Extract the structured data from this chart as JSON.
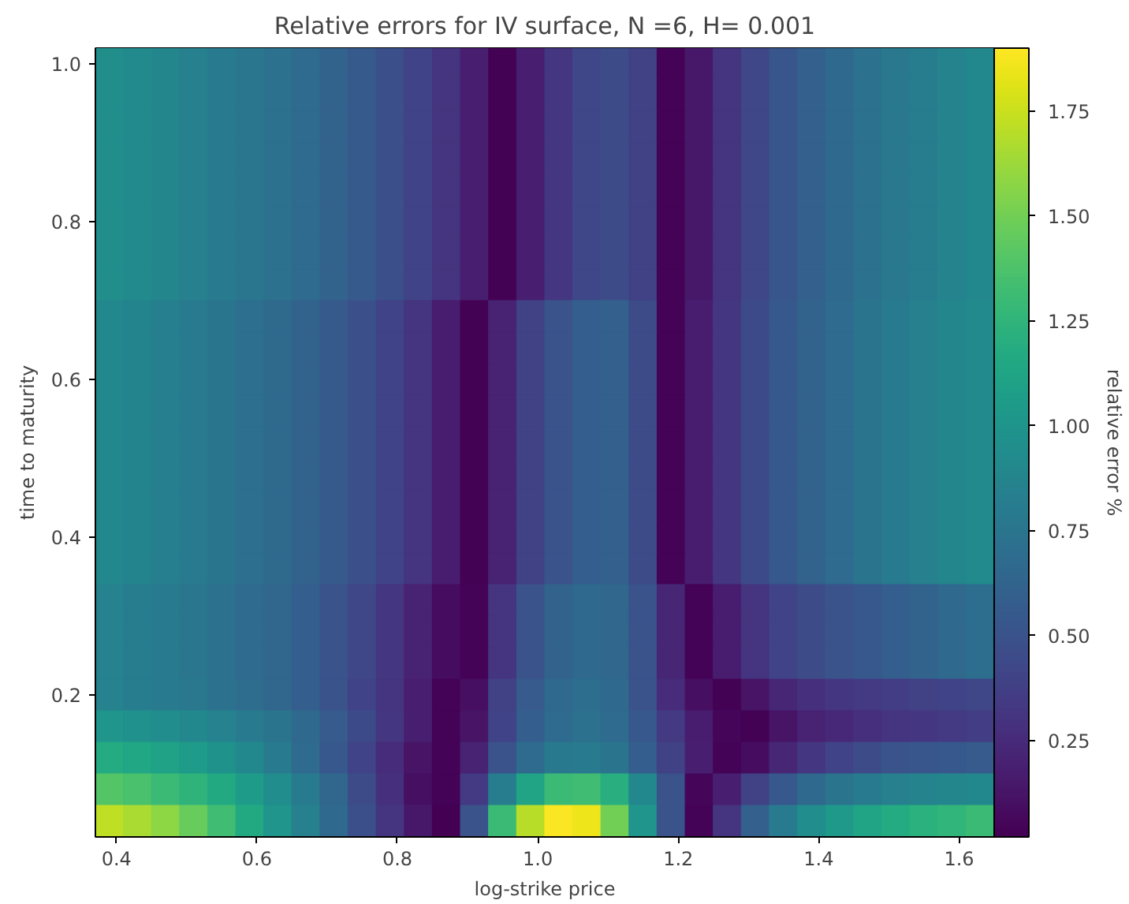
{
  "chart_data": {
    "type": "heatmap",
    "title": "Relative errors for IV surface, N =6, H= 0.001",
    "xlabel": "log-strike price",
    "ylabel": "time to maturity",
    "clabel": "relative error %",
    "x": [
      0.39,
      0.43,
      0.47,
      0.51,
      0.55,
      0.59,
      0.63,
      0.67,
      0.71,
      0.75,
      0.79,
      0.83,
      0.87,
      0.91,
      0.95,
      0.99,
      1.03,
      1.07,
      1.11,
      1.15,
      1.19,
      1.23,
      1.27,
      1.31,
      1.35,
      1.39,
      1.43,
      1.47,
      1.51,
      1.55,
      1.59,
      1.63
    ],
    "y": [
      1.0,
      0.96,
      0.92,
      0.88,
      0.84,
      0.8,
      0.76,
      0.72,
      0.68,
      0.64,
      0.6,
      0.56,
      0.52,
      0.48,
      0.44,
      0.4,
      0.36,
      0.32,
      0.28,
      0.24,
      0.2,
      0.16,
      0.12,
      0.08,
      0.04
    ],
    "xlim": [
      0.37,
      1.65
    ],
    "xticks": [
      {
        "value": 0.4,
        "label": "0.4"
      },
      {
        "value": 0.6,
        "label": "0.6"
      },
      {
        "value": 0.8,
        "label": "0.8"
      },
      {
        "value": 1.0,
        "label": "1.0"
      },
      {
        "value": 1.2,
        "label": "1.2"
      },
      {
        "value": 1.4,
        "label": "1.4"
      },
      {
        "value": 1.6,
        "label": "1.6"
      }
    ],
    "ylim": [
      0.02,
      1.02
    ],
    "yticks": [
      0.2,
      0.4,
      0.6,
      0.8,
      {
        "value": 1.0,
        "label": "1.0"
      }
    ],
    "clim": [
      0.02,
      1.9
    ],
    "cticks": [
      0.25,
      {
        "value": 0.5,
        "label": "0.50"
      },
      0.75,
      {
        "value": 1.0,
        "label": "1.00"
      },
      1.25,
      {
        "value": 1.5,
        "label": "1.50"
      },
      1.75
    ],
    "cells": [
      [
        0.95,
        0.92,
        0.88,
        0.84,
        0.8,
        0.76,
        0.72,
        0.68,
        0.62,
        0.55,
        0.48,
        0.4,
        0.3,
        0.18,
        0.03,
        0.18,
        0.32,
        0.42,
        0.46,
        0.38,
        0.04,
        0.14,
        0.3,
        0.42,
        0.52,
        0.6,
        0.66,
        0.72,
        0.77,
        0.82,
        0.86,
        0.9
      ],
      [
        0.95,
        0.92,
        0.88,
        0.84,
        0.8,
        0.76,
        0.72,
        0.68,
        0.62,
        0.55,
        0.48,
        0.4,
        0.3,
        0.18,
        0.03,
        0.18,
        0.32,
        0.42,
        0.46,
        0.38,
        0.04,
        0.14,
        0.3,
        0.42,
        0.52,
        0.6,
        0.66,
        0.72,
        0.77,
        0.82,
        0.86,
        0.9
      ],
      [
        0.95,
        0.92,
        0.88,
        0.84,
        0.8,
        0.76,
        0.72,
        0.68,
        0.62,
        0.55,
        0.48,
        0.4,
        0.3,
        0.18,
        0.03,
        0.18,
        0.32,
        0.42,
        0.46,
        0.38,
        0.04,
        0.14,
        0.3,
        0.42,
        0.52,
        0.6,
        0.66,
        0.72,
        0.77,
        0.82,
        0.86,
        0.9
      ],
      [
        0.95,
        0.92,
        0.88,
        0.84,
        0.8,
        0.76,
        0.72,
        0.68,
        0.62,
        0.55,
        0.48,
        0.4,
        0.3,
        0.18,
        0.03,
        0.18,
        0.32,
        0.42,
        0.46,
        0.38,
        0.04,
        0.14,
        0.3,
        0.42,
        0.52,
        0.6,
        0.66,
        0.72,
        0.77,
        0.82,
        0.86,
        0.9
      ],
      [
        0.95,
        0.92,
        0.88,
        0.84,
        0.8,
        0.76,
        0.72,
        0.68,
        0.62,
        0.55,
        0.48,
        0.4,
        0.3,
        0.18,
        0.03,
        0.18,
        0.32,
        0.42,
        0.46,
        0.38,
        0.04,
        0.14,
        0.3,
        0.42,
        0.52,
        0.6,
        0.66,
        0.72,
        0.77,
        0.82,
        0.86,
        0.9
      ],
      [
        0.95,
        0.92,
        0.88,
        0.84,
        0.8,
        0.76,
        0.72,
        0.68,
        0.62,
        0.55,
        0.48,
        0.4,
        0.3,
        0.18,
        0.03,
        0.18,
        0.32,
        0.42,
        0.46,
        0.38,
        0.04,
        0.14,
        0.3,
        0.42,
        0.52,
        0.6,
        0.66,
        0.72,
        0.77,
        0.82,
        0.86,
        0.9
      ],
      [
        0.95,
        0.92,
        0.88,
        0.84,
        0.8,
        0.76,
        0.72,
        0.68,
        0.62,
        0.55,
        0.48,
        0.4,
        0.3,
        0.18,
        0.03,
        0.18,
        0.32,
        0.42,
        0.46,
        0.38,
        0.04,
        0.14,
        0.3,
        0.42,
        0.52,
        0.6,
        0.66,
        0.72,
        0.77,
        0.82,
        0.86,
        0.9
      ],
      [
        0.95,
        0.92,
        0.88,
        0.84,
        0.8,
        0.76,
        0.72,
        0.68,
        0.62,
        0.55,
        0.48,
        0.4,
        0.3,
        0.18,
        0.03,
        0.18,
        0.32,
        0.42,
        0.46,
        0.38,
        0.04,
        0.14,
        0.3,
        0.42,
        0.52,
        0.6,
        0.66,
        0.72,
        0.77,
        0.82,
        0.86,
        0.9
      ],
      [
        0.9,
        0.87,
        0.83,
        0.79,
        0.75,
        0.71,
        0.67,
        0.62,
        0.55,
        0.48,
        0.4,
        0.3,
        0.16,
        0.03,
        0.2,
        0.38,
        0.5,
        0.58,
        0.6,
        0.45,
        0.04,
        0.16,
        0.32,
        0.44,
        0.54,
        0.62,
        0.68,
        0.74,
        0.79,
        0.84,
        0.88,
        0.92
      ],
      [
        0.9,
        0.87,
        0.83,
        0.79,
        0.75,
        0.71,
        0.67,
        0.62,
        0.55,
        0.48,
        0.4,
        0.3,
        0.16,
        0.03,
        0.2,
        0.38,
        0.5,
        0.58,
        0.6,
        0.45,
        0.04,
        0.16,
        0.32,
        0.44,
        0.54,
        0.62,
        0.68,
        0.74,
        0.79,
        0.84,
        0.88,
        0.92
      ],
      [
        0.9,
        0.87,
        0.83,
        0.79,
        0.75,
        0.71,
        0.67,
        0.62,
        0.55,
        0.48,
        0.4,
        0.3,
        0.16,
        0.03,
        0.2,
        0.38,
        0.5,
        0.58,
        0.6,
        0.45,
        0.04,
        0.16,
        0.32,
        0.44,
        0.54,
        0.62,
        0.68,
        0.74,
        0.79,
        0.84,
        0.88,
        0.92
      ],
      [
        0.9,
        0.87,
        0.83,
        0.79,
        0.75,
        0.71,
        0.67,
        0.62,
        0.55,
        0.48,
        0.4,
        0.3,
        0.16,
        0.03,
        0.2,
        0.38,
        0.5,
        0.58,
        0.6,
        0.45,
        0.04,
        0.16,
        0.32,
        0.44,
        0.54,
        0.62,
        0.68,
        0.74,
        0.79,
        0.84,
        0.88,
        0.92
      ],
      [
        0.9,
        0.87,
        0.83,
        0.79,
        0.75,
        0.71,
        0.67,
        0.62,
        0.55,
        0.48,
        0.4,
        0.3,
        0.16,
        0.03,
        0.2,
        0.38,
        0.5,
        0.58,
        0.6,
        0.45,
        0.04,
        0.16,
        0.32,
        0.44,
        0.54,
        0.62,
        0.68,
        0.74,
        0.79,
        0.84,
        0.88,
        0.92
      ],
      [
        0.9,
        0.87,
        0.83,
        0.79,
        0.75,
        0.71,
        0.67,
        0.62,
        0.55,
        0.48,
        0.4,
        0.3,
        0.16,
        0.03,
        0.2,
        0.38,
        0.5,
        0.58,
        0.6,
        0.45,
        0.04,
        0.16,
        0.32,
        0.44,
        0.54,
        0.62,
        0.68,
        0.74,
        0.79,
        0.84,
        0.88,
        0.92
      ],
      [
        0.9,
        0.87,
        0.83,
        0.79,
        0.75,
        0.71,
        0.67,
        0.62,
        0.55,
        0.48,
        0.4,
        0.3,
        0.16,
        0.03,
        0.2,
        0.38,
        0.5,
        0.58,
        0.6,
        0.45,
        0.04,
        0.16,
        0.32,
        0.44,
        0.54,
        0.62,
        0.68,
        0.74,
        0.79,
        0.84,
        0.88,
        0.92
      ],
      [
        0.9,
        0.87,
        0.83,
        0.79,
        0.75,
        0.71,
        0.67,
        0.62,
        0.55,
        0.48,
        0.4,
        0.3,
        0.16,
        0.03,
        0.2,
        0.38,
        0.5,
        0.58,
        0.6,
        0.45,
        0.04,
        0.16,
        0.32,
        0.44,
        0.54,
        0.62,
        0.68,
        0.74,
        0.79,
        0.84,
        0.88,
        0.92
      ],
      [
        0.9,
        0.87,
        0.83,
        0.79,
        0.75,
        0.71,
        0.67,
        0.62,
        0.55,
        0.48,
        0.4,
        0.3,
        0.16,
        0.03,
        0.2,
        0.38,
        0.5,
        0.58,
        0.6,
        0.45,
        0.04,
        0.16,
        0.32,
        0.44,
        0.54,
        0.62,
        0.68,
        0.74,
        0.79,
        0.84,
        0.88,
        0.92
      ],
      [
        0.85,
        0.82,
        0.79,
        0.76,
        0.72,
        0.68,
        0.64,
        0.58,
        0.5,
        0.42,
        0.32,
        0.2,
        0.08,
        0.04,
        0.3,
        0.5,
        0.62,
        0.66,
        0.64,
        0.5,
        0.22,
        0.04,
        0.16,
        0.3,
        0.4,
        0.46,
        0.5,
        0.54,
        0.58,
        0.62,
        0.66,
        0.7
      ],
      [
        0.85,
        0.82,
        0.79,
        0.76,
        0.72,
        0.68,
        0.64,
        0.58,
        0.5,
        0.42,
        0.32,
        0.2,
        0.08,
        0.04,
        0.3,
        0.5,
        0.62,
        0.66,
        0.64,
        0.5,
        0.22,
        0.04,
        0.16,
        0.3,
        0.4,
        0.46,
        0.5,
        0.54,
        0.58,
        0.62,
        0.66,
        0.7
      ],
      [
        0.85,
        0.82,
        0.79,
        0.76,
        0.72,
        0.68,
        0.64,
        0.58,
        0.5,
        0.42,
        0.32,
        0.2,
        0.08,
        0.04,
        0.3,
        0.5,
        0.62,
        0.66,
        0.64,
        0.5,
        0.22,
        0.04,
        0.16,
        0.3,
        0.4,
        0.46,
        0.5,
        0.54,
        0.58,
        0.62,
        0.66,
        0.7
      ],
      [
        0.85,
        0.82,
        0.8,
        0.77,
        0.73,
        0.69,
        0.64,
        0.58,
        0.5,
        0.4,
        0.3,
        0.18,
        0.04,
        0.1,
        0.38,
        0.56,
        0.66,
        0.7,
        0.66,
        0.5,
        0.26,
        0.1,
        0.03,
        0.12,
        0.22,
        0.28,
        0.32,
        0.34,
        0.36,
        0.38,
        0.4,
        0.42
      ],
      [
        1.0,
        0.97,
        0.94,
        0.9,
        0.85,
        0.8,
        0.74,
        0.66,
        0.56,
        0.44,
        0.32,
        0.18,
        0.04,
        0.12,
        0.4,
        0.58,
        0.68,
        0.72,
        0.68,
        0.54,
        0.34,
        0.16,
        0.05,
        0.03,
        0.12,
        0.2,
        0.24,
        0.27,
        0.3,
        0.32,
        0.34,
        0.36
      ],
      [
        1.18,
        1.14,
        1.1,
        1.05,
        0.98,
        0.9,
        0.8,
        0.68,
        0.54,
        0.4,
        0.26,
        0.12,
        0.04,
        0.2,
        0.5,
        0.68,
        0.78,
        0.8,
        0.74,
        0.58,
        0.38,
        0.18,
        0.04,
        0.08,
        0.22,
        0.32,
        0.4,
        0.46,
        0.5,
        0.52,
        0.54,
        0.56
      ],
      [
        1.4,
        1.36,
        1.3,
        1.24,
        1.16,
        1.06,
        0.94,
        0.8,
        0.64,
        0.46,
        0.28,
        0.1,
        0.04,
        0.34,
        0.82,
        1.12,
        1.3,
        1.32,
        1.2,
        0.9,
        0.5,
        0.05,
        0.18,
        0.38,
        0.54,
        0.66,
        0.74,
        0.8,
        0.84,
        0.86,
        0.88,
        0.9
      ],
      [
        1.72,
        1.66,
        1.58,
        1.46,
        1.32,
        1.16,
        1.0,
        0.84,
        0.66,
        0.48,
        0.3,
        0.14,
        0.02,
        0.5,
        1.3,
        1.7,
        1.89,
        1.85,
        1.5,
        1.0,
        0.5,
        0.04,
        0.3,
        0.6,
        0.8,
        0.94,
        1.04,
        1.12,
        1.18,
        1.22,
        1.26,
        1.3
      ]
    ]
  }
}
